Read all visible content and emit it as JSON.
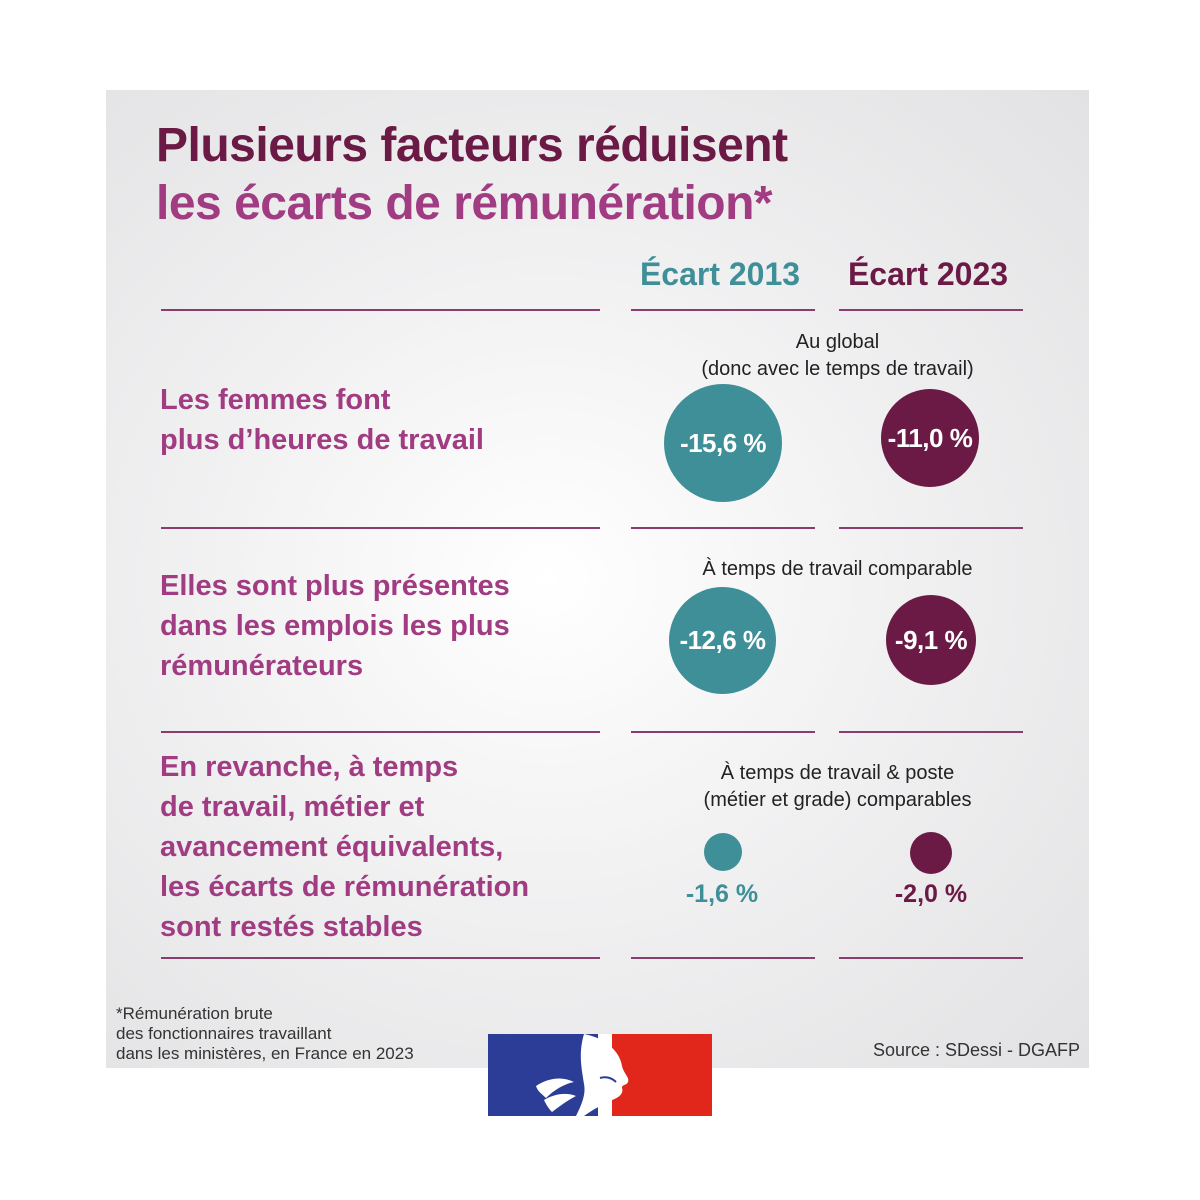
{
  "title_line1": "Plusieurs facteurs réduisent",
  "title_line2": "les écarts de rémunération*",
  "colors": {
    "teal": "#3e8f98",
    "plum": "#6b1a45",
    "violet": "#a13b82"
  },
  "chart_data": {
    "type": "table",
    "columns": [
      "Écart 2013",
      "Écart 2023"
    ],
    "rows": [
      {
        "label": [
          "Les femmes font",
          "plus d’heures de travail"
        ],
        "sublabel": [
          "Au global",
          "(donc avec le temps de travail)"
        ],
        "values": [
          -15.6,
          -11.0
        ],
        "display": [
          "-15,6 %",
          "-11,0 %"
        ]
      },
      {
        "label": [
          "Elles sont plus présentes",
          "dans les emplois les plus",
          "rémunérateurs"
        ],
        "sublabel": [
          "À temps de travail comparable"
        ],
        "values": [
          -12.6,
          -9.1
        ],
        "display": [
          "-12,6 %",
          "-9,1 %"
        ]
      },
      {
        "label": [
          "En revanche, à temps",
          "de travail, métier et",
          "avancement équivalents,",
          "les écarts de rémunération",
          "sont restés stables"
        ],
        "sublabel": [
          "À temps de travail & poste",
          "(métier et grade) comparables"
        ],
        "values": [
          -1.6,
          -2.0
        ],
        "display": [
          "-1,6 %",
          "-2,0 %"
        ]
      }
    ]
  },
  "footnote": [
    "*Rémunération brute",
    "des fonctionnaires travaillant",
    "dans les ministères, en France en 2023"
  ],
  "source": "Source : SDessi - DGAFP",
  "logo_icon": "marianne-logo-icon"
}
